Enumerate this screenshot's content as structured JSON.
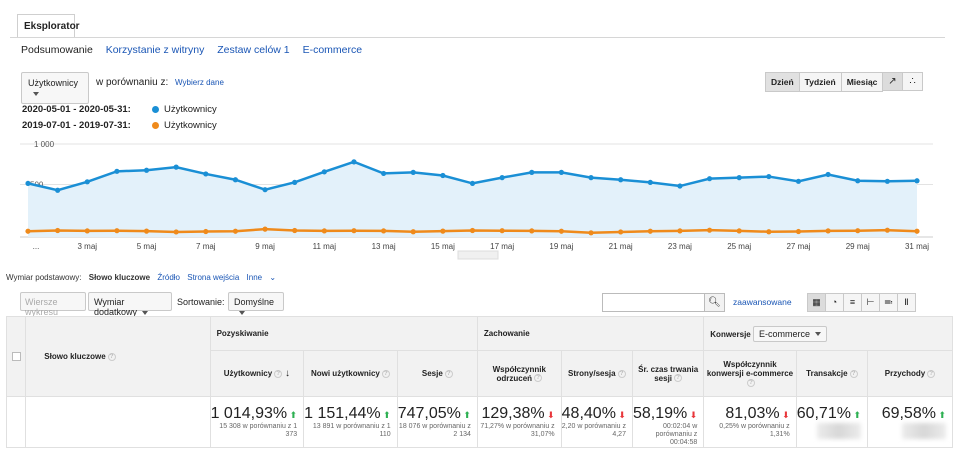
{
  "tabs": {
    "explorer": "Eksplorator"
  },
  "subnav": [
    "Podsumowanie",
    "Korzystanie z witryny",
    "Zestaw celów 1",
    "E-commerce"
  ],
  "metric_select": "Użytkownicy",
  "compare_label": "w porównaniu z:",
  "compare_link": "Wybierz dane",
  "granularity": {
    "day": "Dzień",
    "week": "Tydzień",
    "month": "Miesiąc"
  },
  "legend": [
    {
      "range": "2020-05-01 - 2020-05-31:",
      "series": "Użytkownicy",
      "color": "#1a8fd5"
    },
    {
      "range": "2019-07-01 - 2019-07-31:",
      "series": "Użytkownicy",
      "color": "#ef8a1b"
    }
  ],
  "chart_data": {
    "type": "area",
    "y_ticks": [
      "1 000",
      "500"
    ],
    "ylim": [
      0,
      1000
    ],
    "x_tick_labels": [
      "...",
      "3 maj",
      "5 maj",
      "7 maj",
      "9 maj",
      "11 maj",
      "13 maj",
      "15 maj",
      "17 maj",
      "19 maj",
      "21 maj",
      "23 maj",
      "25 maj",
      "27 maj",
      "29 maj",
      "31 maj"
    ],
    "series": [
      {
        "color": "#1a8fd5",
        "values": [
          510,
          445,
          525,
          625,
          635,
          665,
          600,
          545,
          450,
          520,
          620,
          715,
          605,
          615,
          585,
          510,
          565,
          615,
          615,
          565,
          545,
          520,
          485,
          555,
          565,
          575,
          530,
          595,
          535,
          530,
          535
        ]
      },
      {
        "color": "#ef8a1b",
        "values": [
          55,
          62,
          58,
          60,
          56,
          48,
          52,
          55,
          75,
          62,
          58,
          60,
          58,
          50,
          56,
          62,
          60,
          58,
          55,
          40,
          48,
          55,
          58,
          65,
          58,
          50,
          52,
          58,
          60,
          65,
          55
        ]
      }
    ]
  },
  "dimensions": {
    "label": "Wymiar podstawowy:",
    "active": "Słowo kluczowe",
    "source": "Źródło",
    "landing": "Strona wejścia",
    "other": "Inne"
  },
  "controls": {
    "plot_rows": "Wiersze wykresu",
    "secondary": "Wymiar dodatkowy",
    "sort_label": "Sortowanie:",
    "sort_value": "Domyślne",
    "advanced": "zaawansowane"
  },
  "table": {
    "keyword_header": "Słowo kluczowe",
    "groups": {
      "acquisition": "Pozyskiwanie",
      "behavior": "Zachowanie",
      "conversions": "Konwersje",
      "conversions_select": "E-commerce"
    },
    "metrics": [
      {
        "name": "Użytkownicy",
        "value": "1 014,93%",
        "dir": "up",
        "sub": "15 308 w porównaniu z 1 373"
      },
      {
        "name": "Nowi użytkownicy",
        "value": "1 151,44%",
        "dir": "up",
        "sub": "13 891 w porównaniu z 1 110"
      },
      {
        "name": "Sesje",
        "value": "747,05%",
        "dir": "up",
        "sub": "18 076 w porównaniu z 2 134"
      },
      {
        "name": "Współczynnik odrzuceń",
        "value": "129,38%",
        "dir": "dn",
        "sub": "71,27% w porównaniu z 31,07%"
      },
      {
        "name": "Strony/sesja",
        "value": "48,40%",
        "dir": "dn",
        "sub": "2,20 w porównaniu z 4,27"
      },
      {
        "name": "Śr. czas trwania sesji",
        "value": "58,19%",
        "dir": "dn",
        "sub": "00:02:04 w porównaniu z 00:04:58"
      },
      {
        "name": "Współczynnik konwersji e-commerce",
        "value": "81,03%",
        "dir": "dn",
        "sub": "0,25% w porównaniu z 1,31%"
      },
      {
        "name": "Transakcje",
        "value": "60,71%",
        "dir": "up",
        "sub": ""
      },
      {
        "name": "Przychody",
        "value": "69,58%",
        "dir": "up",
        "sub": ""
      }
    ]
  }
}
